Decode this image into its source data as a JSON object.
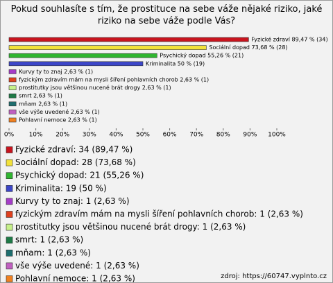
{
  "chart_data": {
    "type": "bar",
    "orientation": "horizontal",
    "title": "Pokud souhlasíte s tím, že prostituce na sebe váže nějaké riziko, jaké riziko na sebe váže podle Vás?",
    "categories": [
      "Fyzické zdraví",
      "Sociální dopad",
      "Psychický dopad",
      "Kriminalita",
      "Kurvy ty to znaj",
      "fyzickým zdravím mám na mysli šíření pohlavních chorob",
      "prostitutky jsou většinou nucené brát drogy",
      "smrt",
      "mňam",
      "vše výše uvedené",
      "Pohlavní nemoce"
    ],
    "values": [
      89.47,
      73.68,
      55.26,
      50,
      2.63,
      2.63,
      2.63,
      2.63,
      2.63,
      2.63,
      2.63
    ],
    "value_labels": [
      "Fyzické zdraví 89,47 % (34)",
      "Sociální dopad 73,68 % (28)",
      "Psychický dopad 55,26 % (21)",
      "Kriminalita 50 % (19)",
      "Kurvy ty to znaj 2,63 % (1)",
      "fyzickým zdravím mám na mysli šíření pohlavních chorob 2,63 % (1)",
      "prostitutky jsou většinou nucené brát drogy 2,63 % (1)",
      "smrt 2,63 % (1)",
      "mňam 2,63 % (1)",
      "vše výše uvedené 2,63 % (1)",
      "Pohlavní nemoce 2,63 % (1)"
    ],
    "legend_labels": [
      "Fyzické zdraví: 34 (89,47 %)",
      "Sociální dopad: 28 (73,68 %)",
      "Psychický dopad: 21 (55,26 %)",
      "Kriminalita: 19 (50 %)",
      "Kurvy ty to znaj: 1 (2,63 %)",
      "fyzickým zdravím mám na mysli šíření pohlavních chorob: 1 (2,63 %)",
      "prostitutky jsou většinou nucené brát drogy: 1 (2,63 %)",
      "smrt: 1 (2,63 %)",
      "mňam: 1 (2,63 %)",
      "vše výše uvedené: 1 (2,63 %)",
      "Pohlavní nemoce: 1 (2,63 %)"
    ],
    "colors": [
      "#c8141e",
      "#f2e23a",
      "#2fb52f",
      "#3c46c8",
      "#a53cc8",
      "#e0401e",
      "#c6f08a",
      "#1e7a46",
      "#1e6e6e",
      "#c060c0",
      "#f08020"
    ],
    "xlim": [
      0,
      100
    ],
    "xticks": [
      {
        "value": 0,
        "label": "0%"
      },
      {
        "value": 10,
        "label": "10%"
      },
      {
        "value": 20,
        "label": "20%"
      },
      {
        "value": 30,
        "label": "30%"
      },
      {
        "value": 40,
        "label": "40%"
      },
      {
        "value": 50,
        "label": "50%"
      },
      {
        "value": 60,
        "label": "60%"
      },
      {
        "value": 70,
        "label": "70%"
      },
      {
        "value": 80,
        "label": "80%"
      },
      {
        "value": 90,
        "label": "90%"
      },
      {
        "value": 100,
        "label": "100%"
      }
    ],
    "source": "zdroj: https://60747.vyplnto.cz"
  }
}
